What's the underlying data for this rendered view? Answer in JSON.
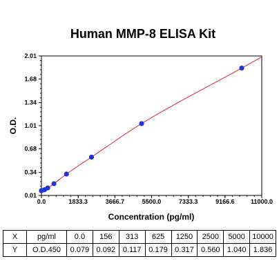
{
  "chart_data": {
    "type": "scatter",
    "title": "Human MMP-8 ELISA Kit",
    "xlabel": "Concentration (pg/ml)",
    "ylabel": "O.D.",
    "xlim": [
      0,
      11000
    ],
    "ylim": [
      0.01,
      2.01
    ],
    "x_ticks": [
      "0.0",
      "1833.3",
      "3666.7",
      "5500.0",
      "7333.3",
      "9166.6",
      "11000.0"
    ],
    "y_ticks": [
      "0.01",
      "0.34",
      "0.68",
      "1.01",
      "1.34",
      "1.68",
      "2.01"
    ],
    "x": [
      0,
      156,
      313,
      625,
      1250,
      2500,
      5000,
      10000
    ],
    "y": [
      0.079,
      0.092,
      0.117,
      0.179,
      0.317,
      0.56,
      1.04,
      1.836
    ],
    "grid": false,
    "point_color": "#2233dd",
    "curve_color": "#e8202a"
  },
  "table": {
    "rows": [
      {
        "label": "X",
        "unit": "pg/ml",
        "values": [
          "0.0",
          "156",
          "313",
          "625",
          "1250",
          "2500",
          "5000",
          "10000"
        ]
      },
      {
        "label": "Y",
        "unit": "O.D.450",
        "values": [
          "0.079",
          "0.092",
          "0.117",
          "0.179",
          "0.317",
          "0.560",
          "1.040",
          "1.836"
        ]
      }
    ]
  }
}
